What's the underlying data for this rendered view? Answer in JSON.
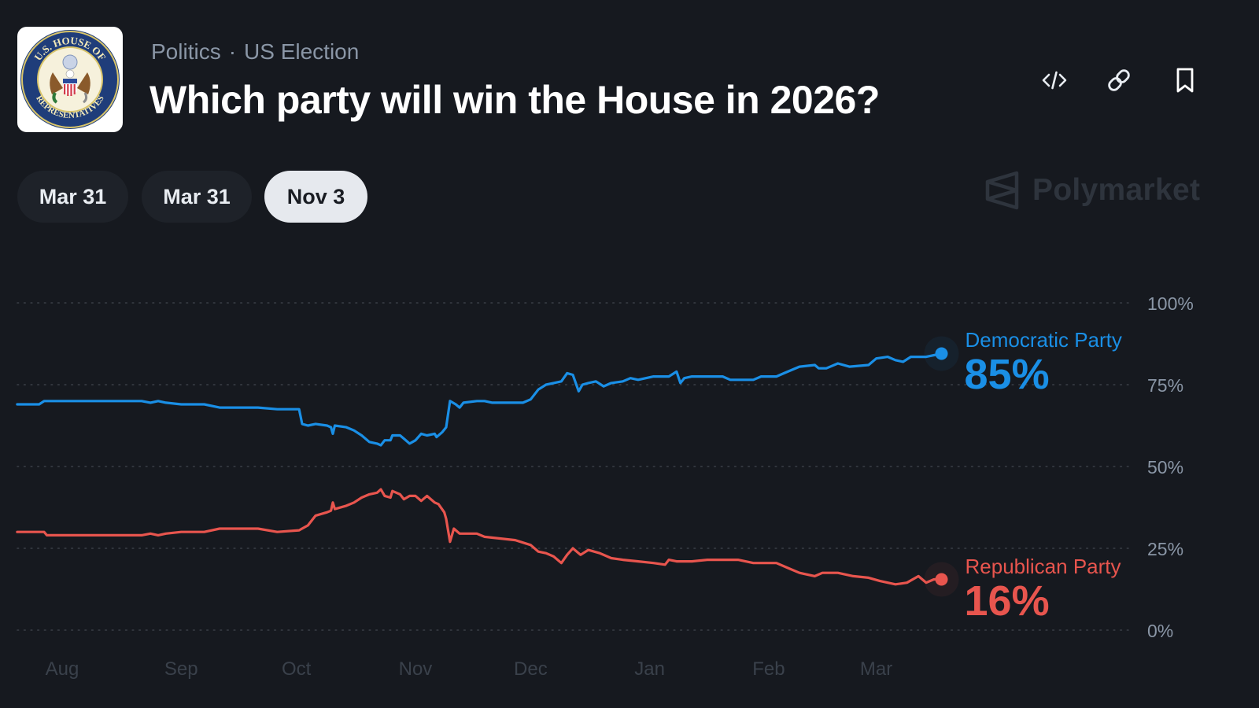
{
  "header": {
    "logo": {
      "icon": "us-house-seal-icon",
      "text_top": "U.S. HOUSE OF",
      "text_bottom": "REPRESENTATIVES"
    },
    "breadcrumb": [
      "Politics",
      "US Election"
    ],
    "breadcrumb_separator": "·",
    "title": "Which party will win the House in 2026?",
    "actions": [
      {
        "icon": "embed-code-icon",
        "label": "Embed"
      },
      {
        "icon": "link-icon",
        "label": "Copy link"
      },
      {
        "icon": "bookmark-icon",
        "label": "Bookmark"
      }
    ]
  },
  "date_tabs": [
    {
      "label": "Mar 31",
      "active": false
    },
    {
      "label": "Mar 31",
      "active": false
    },
    {
      "label": "Nov 3",
      "active": true
    }
  ],
  "watermark": {
    "icon": "polymarket-logo-icon",
    "text": "Polymarket"
  },
  "colors": {
    "background": "#16191f",
    "democratic": "#1a8fe6",
    "republican": "#e8554e",
    "grid": "#3a3f47",
    "axis_text": "#8a96a6",
    "x_axis_text": "#3a414b"
  },
  "chart_data": {
    "type": "line",
    "title": "Which party will win the House in 2026?",
    "xlabel": "",
    "ylabel": "",
    "x_unit": "days since Aug 1",
    "ylim": [
      0,
      100
    ],
    "y_ticks": [
      100,
      75,
      50,
      25,
      0
    ],
    "y_tick_labels": [
      "100%",
      "75%",
      "50%",
      "25%",
      "0%"
    ],
    "x_ticks": [
      0,
      31,
      61,
      92,
      122,
      153,
      184,
      212
    ],
    "x_tick_labels": [
      "Aug",
      "Sep",
      "Oct",
      "Nov",
      "Dec",
      "Jan",
      "Feb",
      "Mar"
    ],
    "xlim": [
      -11.7,
      280
    ],
    "grid": true,
    "legend": "end-of-line labels, right",
    "series": [
      {
        "name": "Democratic Party",
        "current_value_label": "85%",
        "current_value": 85,
        "color": "#1a8fe6",
        "points": [
          [
            -11.7,
            69
          ],
          [
            -6,
            69
          ],
          [
            -4.7,
            70
          ],
          [
            20.7,
            70
          ],
          [
            23,
            69.5
          ],
          [
            25,
            70
          ],
          [
            27,
            69.5
          ],
          [
            31,
            69
          ],
          [
            37,
            69
          ],
          [
            41,
            68
          ],
          [
            51,
            68
          ],
          [
            56,
            67.5
          ],
          [
            61.7,
            67.5
          ],
          [
            62.5,
            63
          ],
          [
            64,
            62.5
          ],
          [
            66,
            63
          ],
          [
            69,
            62.5
          ],
          [
            70,
            62
          ],
          [
            70.5,
            60
          ],
          [
            71,
            62.5
          ],
          [
            74,
            62
          ],
          [
            76,
            61
          ],
          [
            78,
            59.5
          ],
          [
            80,
            57.5
          ],
          [
            82,
            57
          ],
          [
            83,
            56.5
          ],
          [
            84,
            58
          ],
          [
            85.5,
            58
          ],
          [
            86,
            59.5
          ],
          [
            88,
            59.5
          ],
          [
            89,
            58.5
          ],
          [
            90.5,
            57
          ],
          [
            92,
            58
          ],
          [
            93.5,
            60
          ],
          [
            95,
            59.5
          ],
          [
            97,
            60
          ],
          [
            97.5,
            59
          ],
          [
            99,
            60.5
          ],
          [
            100,
            62
          ],
          [
            101,
            70
          ],
          [
            102.5,
            69
          ],
          [
            103.5,
            68
          ],
          [
            104.5,
            69.5
          ],
          [
            108,
            70
          ],
          [
            110,
            70
          ],
          [
            112,
            69.5
          ],
          [
            120,
            69.5
          ],
          [
            122,
            70.5
          ],
          [
            124,
            73.5
          ],
          [
            126,
            75
          ],
          [
            128,
            75.5
          ],
          [
            130,
            76
          ],
          [
            131.5,
            78.5
          ],
          [
            133,
            78
          ],
          [
            134.5,
            73
          ],
          [
            135.5,
            75
          ],
          [
            137,
            75.5
          ],
          [
            139,
            76
          ],
          [
            141,
            74.5
          ],
          [
            143,
            75.5
          ],
          [
            146,
            76
          ],
          [
            148,
            77
          ],
          [
            150,
            76.5
          ],
          [
            154,
            77.5
          ],
          [
            158,
            77.5
          ],
          [
            160,
            79
          ],
          [
            161,
            75.5
          ],
          [
            162,
            77
          ],
          [
            164,
            77.5
          ],
          [
            172,
            77.5
          ],
          [
            174,
            76.5
          ],
          [
            180,
            76.5
          ],
          [
            182,
            77.5
          ],
          [
            186,
            77.5
          ],
          [
            188,
            78.5
          ],
          [
            192,
            80.5
          ],
          [
            196,
            81
          ],
          [
            197,
            80
          ],
          [
            199,
            80
          ],
          [
            202,
            81.5
          ],
          [
            205,
            80.5
          ],
          [
            210,
            81
          ],
          [
            212,
            83
          ],
          [
            215,
            83.5
          ],
          [
            217,
            82.5
          ],
          [
            219,
            82
          ],
          [
            221,
            83.5
          ],
          [
            225,
            83.5
          ],
          [
            229,
            84.5
          ]
        ]
      },
      {
        "name": "Republican Party",
        "current_value_label": "16%",
        "current_value": 16,
        "color": "#e8554e",
        "points": [
          [
            -11.7,
            30
          ],
          [
            -4.7,
            30
          ],
          [
            -4,
            29
          ],
          [
            20.7,
            29
          ],
          [
            23,
            29.5
          ],
          [
            25,
            29
          ],
          [
            27,
            29.5
          ],
          [
            31,
            30
          ],
          [
            37,
            30
          ],
          [
            41,
            31
          ],
          [
            51,
            31
          ],
          [
            56,
            30
          ],
          [
            61.7,
            30.5
          ],
          [
            64,
            32
          ],
          [
            66,
            35
          ],
          [
            69,
            36
          ],
          [
            70,
            36.5
          ],
          [
            70.5,
            39
          ],
          [
            71,
            37
          ],
          [
            74,
            38
          ],
          [
            76,
            39
          ],
          [
            78,
            40.5
          ],
          [
            80,
            41.5
          ],
          [
            82,
            42
          ],
          [
            83,
            43
          ],
          [
            84,
            41
          ],
          [
            85.5,
            40.5
          ],
          [
            86,
            42.5
          ],
          [
            88,
            41.5
          ],
          [
            89,
            40
          ],
          [
            90.5,
            41
          ],
          [
            92,
            41
          ],
          [
            93.5,
            39.5
          ],
          [
            95,
            41
          ],
          [
            97,
            39
          ],
          [
            98,
            38.5
          ],
          [
            99.5,
            36
          ],
          [
            100,
            34
          ],
          [
            101,
            27
          ],
          [
            102,
            31
          ],
          [
            103.5,
            29.5
          ],
          [
            108,
            29.5
          ],
          [
            110,
            28.5
          ],
          [
            114,
            28
          ],
          [
            118,
            27.5
          ],
          [
            122,
            26
          ],
          [
            124,
            24
          ],
          [
            126,
            23.5
          ],
          [
            128,
            22.5
          ],
          [
            130,
            20.5
          ],
          [
            131.5,
            23
          ],
          [
            133,
            25
          ],
          [
            135,
            23
          ],
          [
            137,
            24.5
          ],
          [
            140,
            23.5
          ],
          [
            143,
            22
          ],
          [
            146,
            21.5
          ],
          [
            150,
            21
          ],
          [
            154,
            20.5
          ],
          [
            157,
            20
          ],
          [
            158,
            21.5
          ],
          [
            160,
            21
          ],
          [
            164,
            21
          ],
          [
            168,
            21.5
          ],
          [
            176,
            21.5
          ],
          [
            180,
            20.5
          ],
          [
            186,
            20.5
          ],
          [
            189,
            19
          ],
          [
            192,
            17.5
          ],
          [
            196,
            16.5
          ],
          [
            198,
            17.5
          ],
          [
            202,
            17.5
          ],
          [
            206,
            16.5
          ],
          [
            210,
            16
          ],
          [
            213,
            15
          ],
          [
            217,
            14
          ],
          [
            220,
            14.5
          ],
          [
            223,
            16.5
          ],
          [
            225,
            14.5
          ],
          [
            227,
            15.5
          ],
          [
            229,
            15.5
          ]
        ]
      }
    ]
  }
}
